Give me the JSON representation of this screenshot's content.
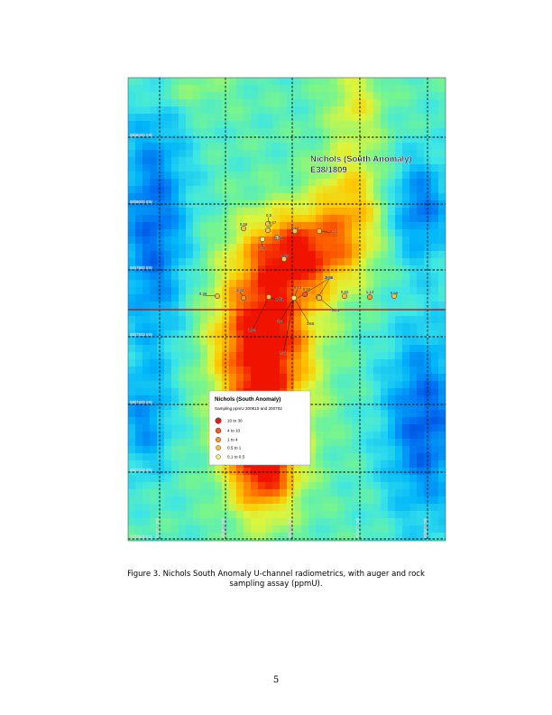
{
  "map": {
    "title_line1": "Nichols (South Anomaly)",
    "title_line2": "E38/1809",
    "northings": [
      "6658200 mN",
      "6658000 mN",
      "6657800 mN",
      "6657600 mN",
      "6657400 mN",
      "6657200 mN",
      "6656800 mN"
    ],
    "eastings": [
      "371600 mE",
      "371800 mE",
      "372000 mE",
      "372200 mE",
      "372400 mE"
    ],
    "samples": [
      {
        "label": "0.5"
      },
      {
        "label": "0.67"
      },
      {
        "label": "0.58"
      },
      {
        "label": "0.62"
      },
      {
        "label": "0.35"
      },
      {
        "label": "0.52"
      },
      {
        "label": "0.43"
      },
      {
        "label": "0.59"
      },
      {
        "label": "0.43"
      },
      {
        "label": "0.82"
      },
      {
        "label": "0.49"
      },
      {
        "label": "3.43"
      },
      {
        "label": "0.71"
      },
      {
        "label": "0.58"
      },
      {
        "label": "3.68"
      },
      {
        "label": "0.61"
      },
      {
        "label": "1.14"
      },
      {
        "label": "0.66"
      },
      {
        "label": "0.53"
      },
      {
        "label": "6.4"
      },
      {
        "label": "1.54"
      },
      {
        "label": "2.66"
      },
      {
        "label": "0.52"
      }
    ],
    "legend": {
      "title": "Nichols (South Anomaly)",
      "subtitle": "Sampling ppmU 200610 and 200702",
      "items": [
        {
          "label": "10    to 30",
          "color": "#e02020"
        },
        {
          "label": "4     to 10",
          "color": "#f05a28"
        },
        {
          "label": "1     to  4",
          "color": "#f59a3a"
        },
        {
          "label": "0.5 to   1",
          "color": "#f5c040"
        },
        {
          "label": "0.1 to   0.5",
          "color": "#f3ef7a"
        }
      ]
    }
  },
  "caption_line1": "Figure 3. Nichols South Anomaly U-channel radiometrics, with auger and rock",
  "caption_line2": "sampling assay (ppmU).",
  "page_number": "5"
}
